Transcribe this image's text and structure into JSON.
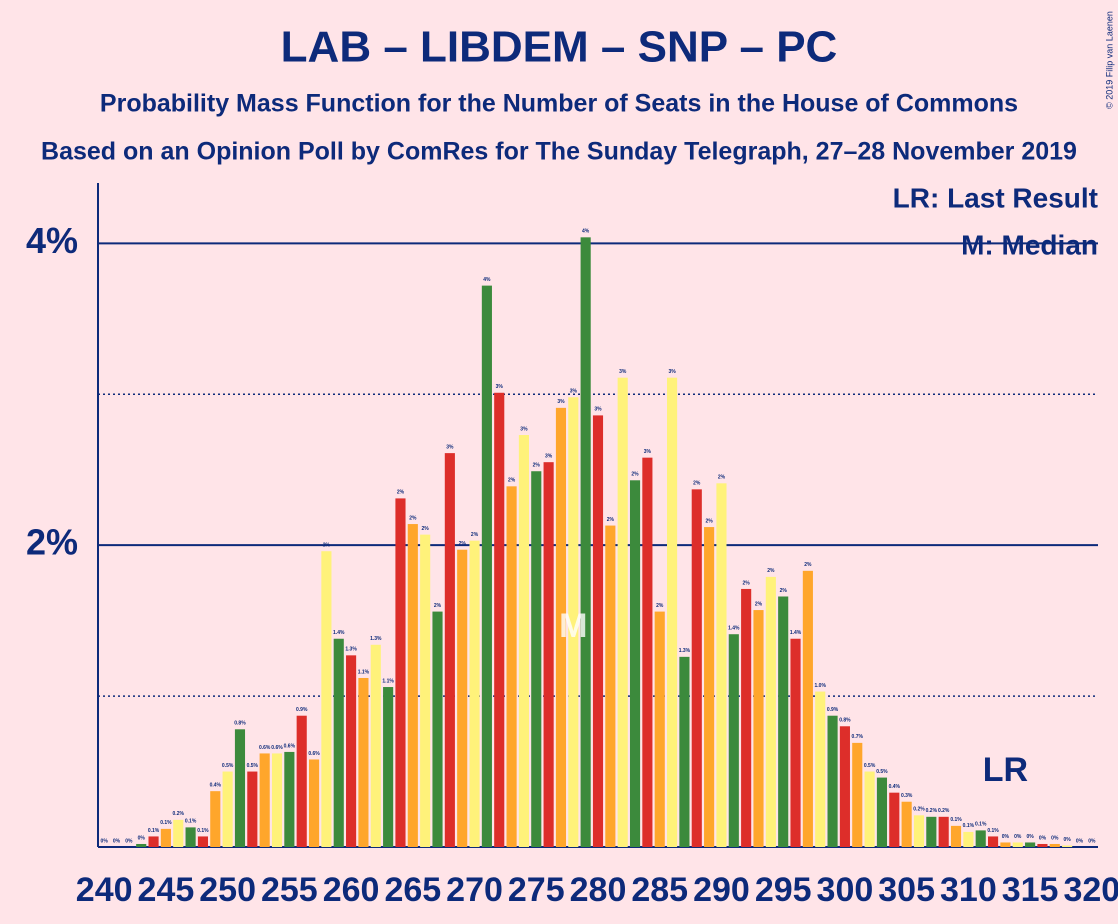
{
  "chart_data": {
    "type": "bar",
    "title": "LAB – LIBDEM – SNP – PC",
    "subtitle": "Probability Mass Function for the Number of Seats in the House of Commons",
    "source": "Based on an Opinion Poll by ComRes for The Sunday Telegraph, 27–28 November 2019",
    "copyright": "© 2019 Filip van Laenen",
    "legend_lr": "LR: Last Result",
    "legend_median": "M: Median",
    "last_result": 313,
    "last_result_label": "LR",
    "median": 278,
    "median_label": "M",
    "colors": [
      "#dd2e2a",
      "#ffa62b",
      "#fff27a",
      "#3c8a3c"
    ],
    "x": [
      240,
      241,
      242,
      243,
      244,
      245,
      246,
      247,
      248,
      249,
      250,
      251,
      252,
      253,
      254,
      255,
      256,
      257,
      258,
      259,
      260,
      261,
      262,
      263,
      264,
      265,
      266,
      267,
      268,
      269,
      270,
      271,
      272,
      273,
      274,
      275,
      276,
      277,
      278,
      279,
      280,
      281,
      282,
      283,
      284,
      285,
      286,
      287,
      288,
      289,
      290,
      291,
      292,
      293,
      294,
      295,
      296,
      297,
      298,
      299,
      300,
      301,
      302,
      303,
      304,
      305,
      306,
      307,
      308,
      309,
      310,
      311,
      312,
      313,
      314,
      315,
      316,
      317,
      318,
      319,
      320
    ],
    "values": [
      0,
      0,
      0,
      0.02,
      0.07,
      0.12,
      0.18,
      0.13,
      0.07,
      0.37,
      0.5,
      0.78,
      0.5,
      0.62,
      0.62,
      0.63,
      0.87,
      0.58,
      1.96,
      1.38,
      1.27,
      1.12,
      1.34,
      1.06,
      2.31,
      2.14,
      2.07,
      1.56,
      2.61,
      1.97,
      2.03,
      3.72,
      3.01,
      2.39,
      2.73,
      2.49,
      2.55,
      2.91,
      2.98,
      4.04,
      2.86,
      2.13,
      3.11,
      2.43,
      2.58,
      1.56,
      3.11,
      1.26,
      2.37,
      2.12,
      2.41,
      1.41,
      1.71,
      1.57,
      1.79,
      1.66,
      1.38,
      1.83,
      1.03,
      0.87,
      0.8,
      0.69,
      0.5,
      0.46,
      0.36,
      0.3,
      0.21,
      0.2,
      0.2,
      0.14,
      0.1,
      0.11,
      0.07,
      0.03,
      0.03,
      0.03,
      0.02,
      0.02,
      0.01,
      0,
      0
    ],
    "value_labels": [
      "0%",
      "0%",
      "0%",
      "0%",
      "0.1%",
      "0.1%",
      "0.2%",
      "0.1%",
      "0.1%",
      "0.4%",
      "0.5%",
      "0.8%",
      "0.5%",
      "0.6%",
      "0.6%",
      "0.6%",
      "0.9%",
      "0.6%",
      "2%",
      "1.4%",
      "1.3%",
      "1.1%",
      "1.3%",
      "1.1%",
      "2%",
      "2%",
      "2%",
      "2%",
      "3%",
      "2%",
      "2%",
      "4%",
      "3%",
      "2%",
      "3%",
      "2%",
      "3%",
      "3%",
      "3%",
      "4%",
      "3%",
      "2%",
      "3%",
      "2%",
      "3%",
      "2%",
      "3%",
      "1.3%",
      "2%",
      "2%",
      "2%",
      "1.4%",
      "2%",
      "2%",
      "2%",
      "2%",
      "1.4%",
      "2%",
      "1.0%",
      "0.9%",
      "0.8%",
      "0.7%",
      "0.5%",
      "0.5%",
      "0.4%",
      "0.3%",
      "0.2%",
      "0.2%",
      "0.2%",
      "0.1%",
      "0.1%",
      "0.1%",
      "0.1%",
      "0%",
      "0%",
      "0%",
      "0%",
      "0%",
      "0%",
      "0%",
      "0%"
    ],
    "xlim": [
      239.5,
      320.5
    ],
    "xticks": [
      240,
      245,
      250,
      255,
      260,
      265,
      270,
      275,
      280,
      285,
      290,
      295,
      300,
      305,
      310,
      315,
      320
    ],
    "ylim": [
      0,
      4.4
    ],
    "yticks": [
      {
        "value": 2,
        "label": "2%"
      },
      {
        "value": 4,
        "label": "4%"
      }
    ],
    "minor_yticks": [
      1,
      3
    ],
    "grid": true
  }
}
